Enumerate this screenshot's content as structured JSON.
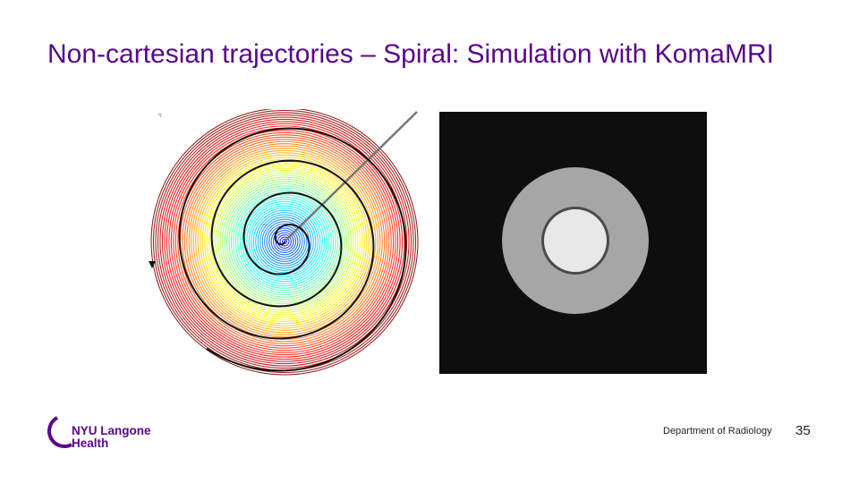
{
  "slide": {
    "title": "Non-cartesian trajectories – Spiral: Simulation with KomaMRI",
    "page_number": "35"
  },
  "footer": {
    "department": "Department of Radiology",
    "logo_line1": "NYU Langone",
    "logo_line2": "Health"
  },
  "colors": {
    "title": "#57068c",
    "brand": "#57068c",
    "recon_background": "#0e0e0e",
    "recon_outer_ring": "#a6a6a6",
    "recon_inner_disc": "#e8e8e8"
  },
  "figures": {
    "left": "spiral k-space trajectory colored by time (jet colormap) with overlaid black spiral arm",
    "right": "reconstructed phantom image: gray annulus with bright central disc"
  }
}
